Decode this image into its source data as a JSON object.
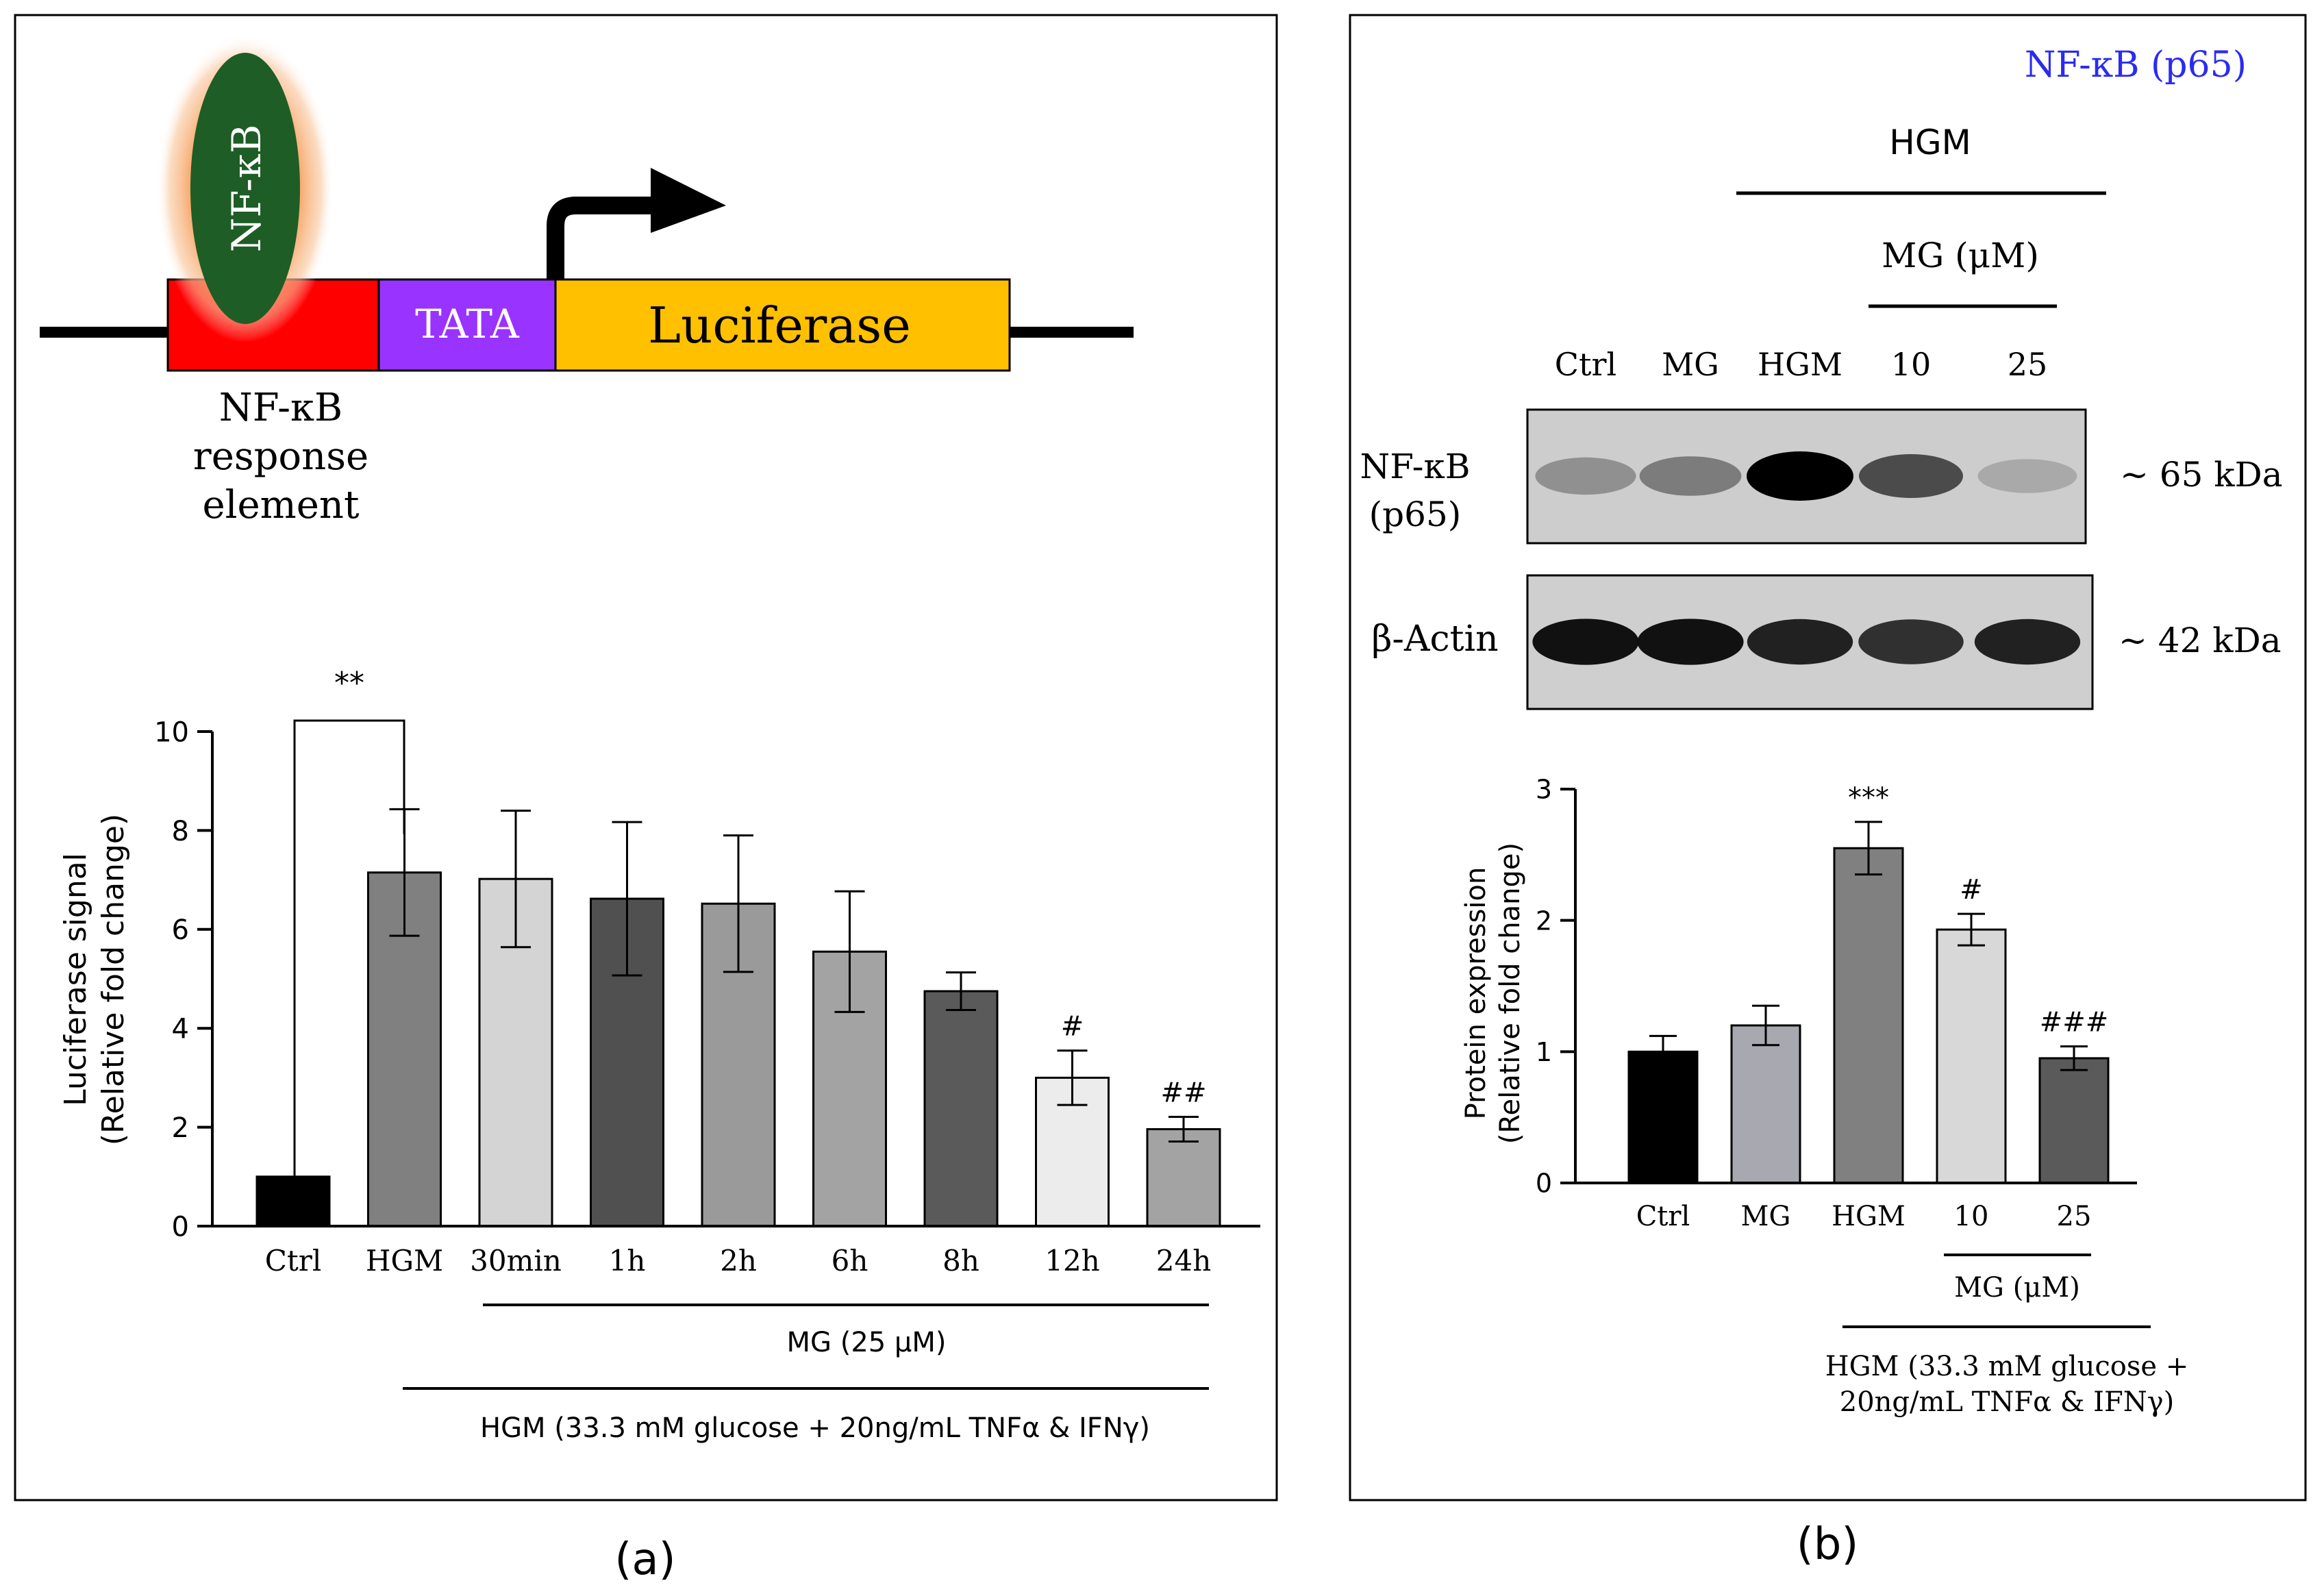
{
  "panel_a": {
    "construct": {
      "nfkb_label": "NF-κB",
      "tata_label": "TATA",
      "luciferase_label": "Luciferase",
      "response_element_lines": [
        "NF-κB",
        "response",
        "element"
      ]
    },
    "significance_bracket": "**",
    "group_labels": {
      "mg": "MG (25 μM)",
      "hgm": "HGM (33.3 mM glucose +  20ng/mL TNFα & IFNγ)"
    },
    "caption": "(a)"
  },
  "panel_b": {
    "title": "NF-κB (p65)",
    "blot": {
      "hgm_label": "HGM",
      "mg_label": "MG (μM)",
      "lanes": [
        "Ctrl",
        "MG",
        "HGM",
        "10",
        "25"
      ],
      "rows": [
        {
          "label_lines": [
            "NF-κB",
            "(p65)"
          ],
          "size": "~ 65 kDa",
          "intensities": [
            0.45,
            0.55,
            1.0,
            0.75,
            0.3
          ]
        },
        {
          "label_lines": [
            "β-Actin"
          ],
          "size": "~ 42 kDa",
          "intensities": [
            0.95,
            0.95,
            0.9,
            0.85,
            0.9
          ]
        }
      ]
    },
    "group_labels": {
      "mg": "MG (μM)",
      "hgm_lines": [
        "HGM (33.3 mM glucose +",
        "20ng/mL TNFα & IFNγ)"
      ]
    },
    "caption": "(b)"
  },
  "chart_data": [
    {
      "type": "bar",
      "title": "",
      "categories": [
        "Ctrl",
        "HGM",
        "30min",
        "1h",
        "2h",
        "6h",
        "8h",
        "12h",
        "24h"
      ],
      "values": [
        1.0,
        7.15,
        7.02,
        6.62,
        6.52,
        5.55,
        4.75,
        3.0,
        1.96
      ],
      "errors": [
        0.0,
        1.28,
        1.38,
        1.55,
        1.38,
        1.22,
        0.38,
        0.55,
        0.25
      ],
      "colors": [
        "#000000",
        "#808080",
        "#d4d4d4",
        "#505050",
        "#9a9a9a",
        "#a3a3a3",
        "#5a5a5a",
        "#ececec",
        "#a3a3a3"
      ],
      "significance": [
        "",
        "",
        "",
        "",
        "",
        "",
        "",
        "#",
        "##"
      ],
      "xlabel": "",
      "ylabel_lines": [
        "Luciferase signal",
        "(Relative fold change)"
      ],
      "ylim": [
        0,
        10
      ],
      "yticks": [
        "0",
        "2",
        "4",
        "6",
        "8",
        "10"
      ]
    },
    {
      "type": "bar",
      "title": "",
      "categories": [
        "Ctrl",
        "MG",
        "HGM",
        "10",
        "25"
      ],
      "values": [
        1.0,
        1.2,
        2.55,
        1.93,
        0.95
      ],
      "errors": [
        0.12,
        0.15,
        0.2,
        0.12,
        0.09
      ],
      "colors": [
        "#000000",
        "#a8a8b0",
        "#808080",
        "#d8d8d8",
        "#5a5a5a"
      ],
      "significance": [
        "",
        "",
        "***",
        "#",
        "###"
      ],
      "xlabel": "",
      "ylabel_lines": [
        "Protein expression",
        "(Relative fold change)"
      ],
      "ylim": [
        0,
        3
      ],
      "yticks": [
        "0",
        "1",
        "2",
        "3"
      ]
    }
  ]
}
